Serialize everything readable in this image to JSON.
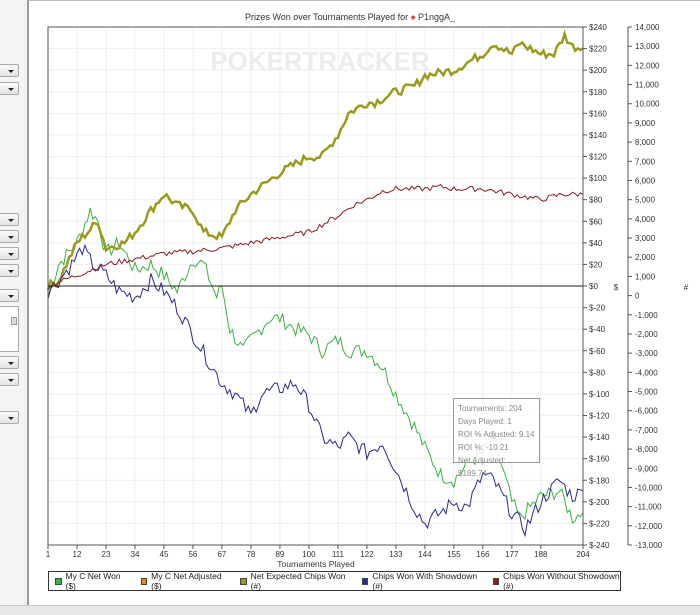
{
  "chart_data": {
    "type": "line",
    "title": "Prizes Won over Tournaments Played for",
    "player": "P1nggA_",
    "watermark": "POKERTRACKER",
    "xlabel": "Tournaments Played",
    "ylabel_left": "$",
    "ylabel_right": "#",
    "xlim": [
      1,
      204
    ],
    "ylim": [
      -240,
      240
    ],
    "y2lim": [
      -13000,
      14000
    ],
    "x_ticks": [
      "1",
      "12",
      "23",
      "34",
      "45",
      "56",
      "67",
      "78",
      "89",
      "100",
      "111",
      "122",
      "133",
      "144",
      "155",
      "166",
      "177",
      "188",
      "204"
    ],
    "y_ticks": [
      "$240",
      "$220",
      "$200",
      "$180",
      "$160",
      "$140",
      "$120",
      "$100",
      "$80",
      "$60",
      "$40",
      "$20",
      "$0",
      "$-20",
      "$-40",
      "$-60",
      "$-80",
      "$-100",
      "$-120",
      "$-140",
      "$-160",
      "$-180",
      "$-200",
      "$-220",
      "$-240"
    ],
    "y2_ticks": [
      "14,000",
      "13,000",
      "12,000",
      "11,000",
      "10,000",
      "9,000",
      "8,000",
      "7,000",
      "6,000",
      "5,000",
      "4,000",
      "3,000",
      "2,000",
      "1,000",
      "0",
      "-1,000",
      "-2,000",
      "-3,000",
      "-4,000",
      "-5,000",
      "-6,000",
      "-7,000",
      "-8,000",
      "-9,000",
      "-10,000",
      "-11,000",
      "-12,000",
      "-13,000"
    ],
    "series": [
      {
        "name": "My C Net Won ($)",
        "color": "#3cb043",
        "width": 1,
        "points": [
          [
            1,
            -10
          ],
          [
            5,
            20
          ],
          [
            12,
            40
          ],
          [
            17,
            70
          ],
          [
            20,
            60
          ],
          [
            23,
            30
          ],
          [
            28,
            40
          ],
          [
            34,
            15
          ],
          [
            40,
            20
          ],
          [
            45,
            10
          ],
          [
            50,
            -5
          ],
          [
            56,
            25
          ],
          [
            60,
            20
          ],
          [
            65,
            -10
          ],
          [
            67,
            0
          ],
          [
            70,
            -40
          ],
          [
            75,
            -60
          ],
          [
            78,
            -50
          ],
          [
            85,
            -30
          ],
          [
            89,
            -30
          ],
          [
            95,
            -40
          ],
          [
            100,
            -45
          ],
          [
            105,
            -60
          ],
          [
            111,
            -50
          ],
          [
            115,
            -60
          ],
          [
            122,
            -60
          ],
          [
            128,
            -75
          ],
          [
            133,
            -100
          ],
          [
            140,
            -130
          ],
          [
            144,
            -150
          ],
          [
            150,
            -175
          ],
          [
            155,
            -180
          ],
          [
            160,
            -165
          ],
          [
            166,
            -155
          ],
          [
            170,
            -140
          ],
          [
            177,
            -200
          ],
          [
            180,
            -215
          ],
          [
            188,
            -195
          ],
          [
            195,
            -190
          ],
          [
            200,
            -215
          ],
          [
            204,
            -210
          ]
        ]
      },
      {
        "name": "My C Net Adjusted ($)",
        "color": "#e08a1e",
        "width": 1,
        "points": []
      },
      {
        "name": "Net Expected Chips Won (#)",
        "color": "#9a9a1e",
        "width": 2.5,
        "points": [
          [
            1,
            0
          ],
          [
            5,
            5
          ],
          [
            12,
            40
          ],
          [
            20,
            60
          ],
          [
            23,
            35
          ],
          [
            30,
            40
          ],
          [
            34,
            50
          ],
          [
            40,
            70
          ],
          [
            45,
            85
          ],
          [
            50,
            75
          ],
          [
            56,
            70
          ],
          [
            60,
            50
          ],
          [
            67,
            45
          ],
          [
            72,
            70
          ],
          [
            78,
            85
          ],
          [
            89,
            105
          ],
          [
            100,
            120
          ],
          [
            105,
            120
          ],
          [
            111,
            140
          ],
          [
            115,
            160
          ],
          [
            122,
            170
          ],
          [
            125,
            170
          ],
          [
            133,
            180
          ],
          [
            140,
            185
          ],
          [
            144,
            195
          ],
          [
            155,
            200
          ],
          [
            166,
            215
          ],
          [
            170,
            225
          ],
          [
            177,
            215
          ],
          [
            180,
            225
          ],
          [
            188,
            215
          ],
          [
            193,
            215
          ],
          [
            197,
            232
          ],
          [
            200,
            222
          ],
          [
            204,
            220
          ]
        ]
      },
      {
        "name": "Chips Won With Showdown (#)",
        "color": "#2a2a8c",
        "width": 1,
        "points": [
          [
            1,
            -5
          ],
          [
            5,
            5
          ],
          [
            10,
            20
          ],
          [
            14,
            35
          ],
          [
            18,
            20
          ],
          [
            23,
            10
          ],
          [
            28,
            -5
          ],
          [
            34,
            -10
          ],
          [
            40,
            5
          ],
          [
            45,
            -5
          ],
          [
            50,
            -20
          ],
          [
            56,
            -45
          ],
          [
            62,
            -70
          ],
          [
            67,
            -90
          ],
          [
            72,
            -100
          ],
          [
            78,
            -120
          ],
          [
            82,
            -100
          ],
          [
            89,
            -95
          ],
          [
            95,
            -90
          ],
          [
            100,
            -110
          ],
          [
            105,
            -140
          ],
          [
            111,
            -150
          ],
          [
            115,
            -140
          ],
          [
            122,
            -155
          ],
          [
            128,
            -145
          ],
          [
            133,
            -170
          ],
          [
            140,
            -205
          ],
          [
            144,
            -220
          ],
          [
            150,
            -210
          ],
          [
            155,
            -200
          ],
          [
            160,
            -205
          ],
          [
            166,
            -175
          ],
          [
            170,
            -180
          ],
          [
            177,
            -210
          ],
          [
            182,
            -225
          ],
          [
            188,
            -200
          ],
          [
            195,
            -180
          ],
          [
            200,
            -195
          ],
          [
            204,
            -190
          ]
        ]
      },
      {
        "name": "Chips Won Without Showdown (#)",
        "color": "#8b1a1a",
        "width": 1,
        "points": [
          [
            1,
            0
          ],
          [
            12,
            10
          ],
          [
            23,
            20
          ],
          [
            34,
            25
          ],
          [
            45,
            30
          ],
          [
            56,
            32
          ],
          [
            67,
            35
          ],
          [
            78,
            40
          ],
          [
            89,
            45
          ],
          [
            100,
            50
          ],
          [
            111,
            65
          ],
          [
            117,
            75
          ],
          [
            122,
            80
          ],
          [
            128,
            88
          ],
          [
            133,
            90
          ],
          [
            144,
            90
          ],
          [
            150,
            92
          ],
          [
            155,
            90
          ],
          [
            166,
            90
          ],
          [
            177,
            85
          ],
          [
            188,
            80
          ],
          [
            196,
            85
          ],
          [
            204,
            85
          ]
        ]
      }
    ]
  },
  "tooltip": {
    "lines": [
      "Tournaments: 204",
      "Days Played: 1",
      "ROI % Adjusted: 9.14",
      "ROI %: -10.21",
      "Net Adjusted: $189.74"
    ]
  }
}
